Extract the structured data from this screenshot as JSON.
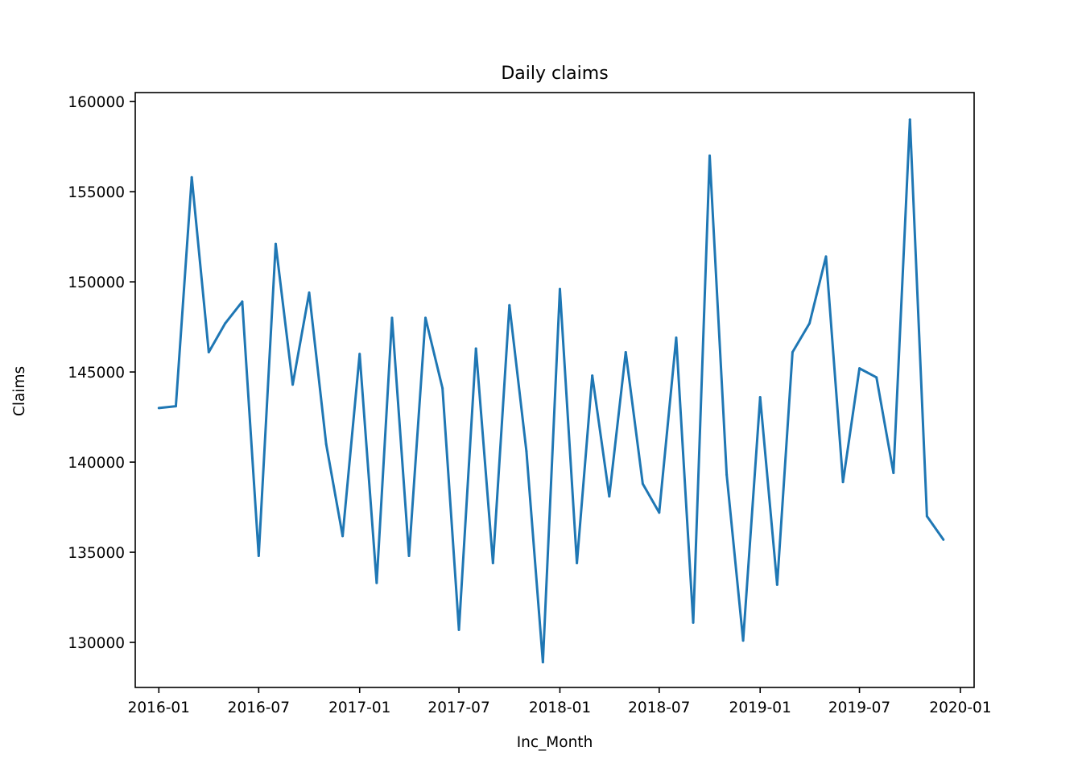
{
  "chart_data": {
    "type": "line",
    "title": "Daily claims",
    "xlabel": "Inc_Month",
    "ylabel": "Claims",
    "x_ticks": [
      "2016-01",
      "2016-07",
      "2017-01",
      "2017-07",
      "2018-01",
      "2018-07",
      "2019-01",
      "2019-07",
      "2020-01"
    ],
    "y_ticks": [
      130000,
      135000,
      140000,
      145000,
      150000,
      155000,
      160000
    ],
    "xlim": [
      "2015-11-19",
      "2020-01-26"
    ],
    "ylim": [
      127500,
      160500
    ],
    "grid": false,
    "line_color": "#1f77b4",
    "series": [
      {
        "x": [
          "2016-01",
          "2016-02",
          "2016-03",
          "2016-04",
          "2016-05",
          "2016-06",
          "2016-07",
          "2016-08",
          "2016-09",
          "2016-10",
          "2016-11",
          "2016-12",
          "2017-01",
          "2017-02",
          "2017-03",
          "2017-04",
          "2017-05",
          "2017-06",
          "2017-07",
          "2017-08",
          "2017-09",
          "2017-10",
          "2017-11",
          "2017-12",
          "2018-01",
          "2018-02",
          "2018-03",
          "2018-04",
          "2018-05",
          "2018-06",
          "2018-07",
          "2018-08",
          "2018-09",
          "2018-10",
          "2018-11",
          "2018-12",
          "2019-01",
          "2019-02",
          "2019-03",
          "2019-04",
          "2019-05",
          "2019-06",
          "2019-07",
          "2019-08",
          "2019-09",
          "2019-10",
          "2019-11",
          "2019-12"
        ],
        "values": [
          143000,
          143100,
          155800,
          146100,
          147700,
          148900,
          134800,
          152100,
          144300,
          149400,
          141000,
          135900,
          146000,
          133300,
          148000,
          134800,
          148000,
          144100,
          130700,
          146300,
          134400,
          148700,
          140600,
          128900,
          149600,
          134400,
          144800,
          138100,
          146100,
          138800,
          137200,
          146900,
          131100,
          157000,
          139300,
          130100,
          143600,
          133200,
          146100,
          147700,
          151400,
          138900,
          145200,
          144700,
          139400,
          159000,
          137000,
          135700
        ]
      }
    ]
  }
}
